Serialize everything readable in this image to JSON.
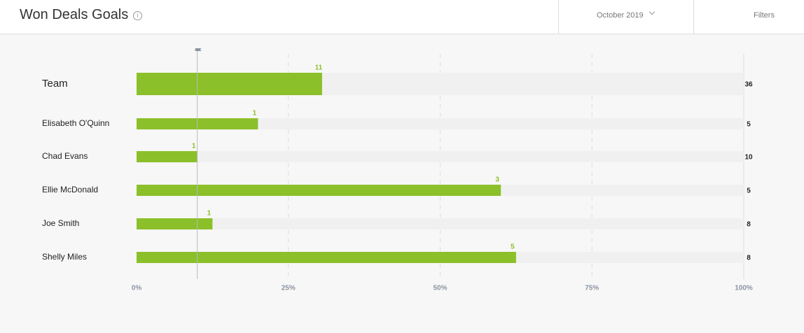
{
  "header": {
    "title": "Won Deals Goals",
    "period": "October 2019",
    "filters": "Filters"
  },
  "chart_data": {
    "type": "goal-bar",
    "categories": [
      "Team",
      "Elisabeth O'Quinn",
      "Chad Evans",
      "Ellie McDonald",
      "Joe Smith",
      "Shelly Miles"
    ],
    "values": [
      11,
      1,
      1,
      3,
      1,
      5
    ],
    "goals": [
      36,
      5,
      10,
      5,
      8,
      8
    ],
    "color": "#8bc02a",
    "track_color": "#f0f0f0",
    "target_line": 10,
    "xlim": [
      0,
      100
    ],
    "xticks": [
      {
        "value": 0,
        "label": "0%"
      },
      {
        "value": 25,
        "label": "25%"
      },
      {
        "value": 50,
        "label": "50%"
      },
      {
        "value": 75,
        "label": "75%"
      },
      {
        "value": 100,
        "label": "100%"
      }
    ],
    "grid": true
  }
}
